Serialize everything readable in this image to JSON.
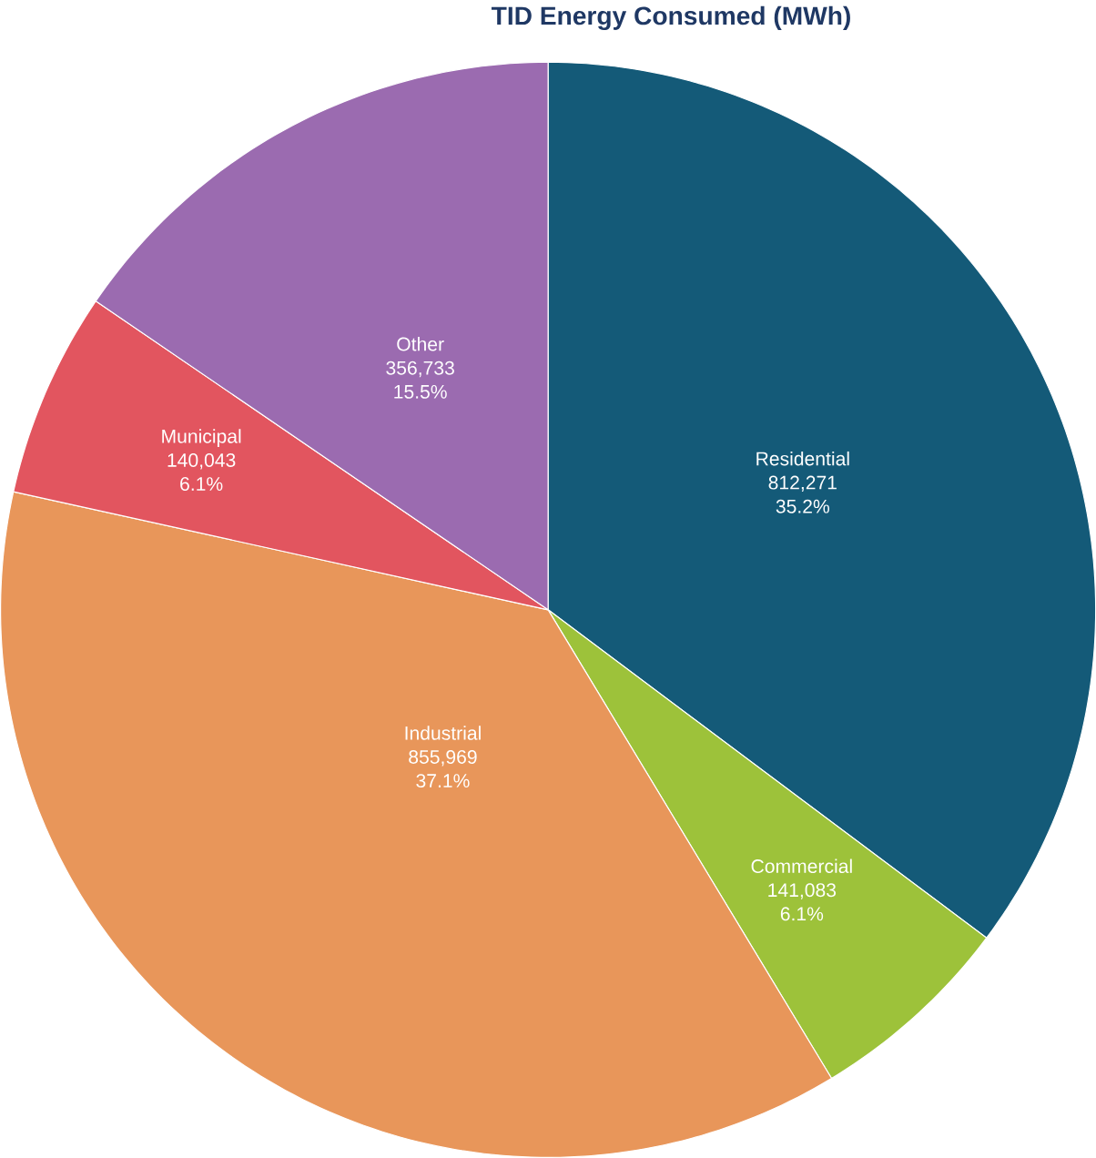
{
  "chart_data": {
    "type": "pie",
    "title": "TID Energy Consumed (MWh)",
    "categories": [
      "Residential",
      "Commercial",
      "Industrial",
      "Municipal",
      "Other"
    ],
    "values": [
      812271,
      141083,
      855969,
      140043,
      356733
    ],
    "value_labels": [
      "812,271 35.2%",
      "141,083 6.1%",
      "855,969 37.1%",
      "140,043 6.1%",
      "356,733 15.5%"
    ],
    "colors": [
      "#145a78",
      "#9dc23a",
      "#e8965a",
      "#e2555f",
      "#9b6bb0"
    ]
  }
}
